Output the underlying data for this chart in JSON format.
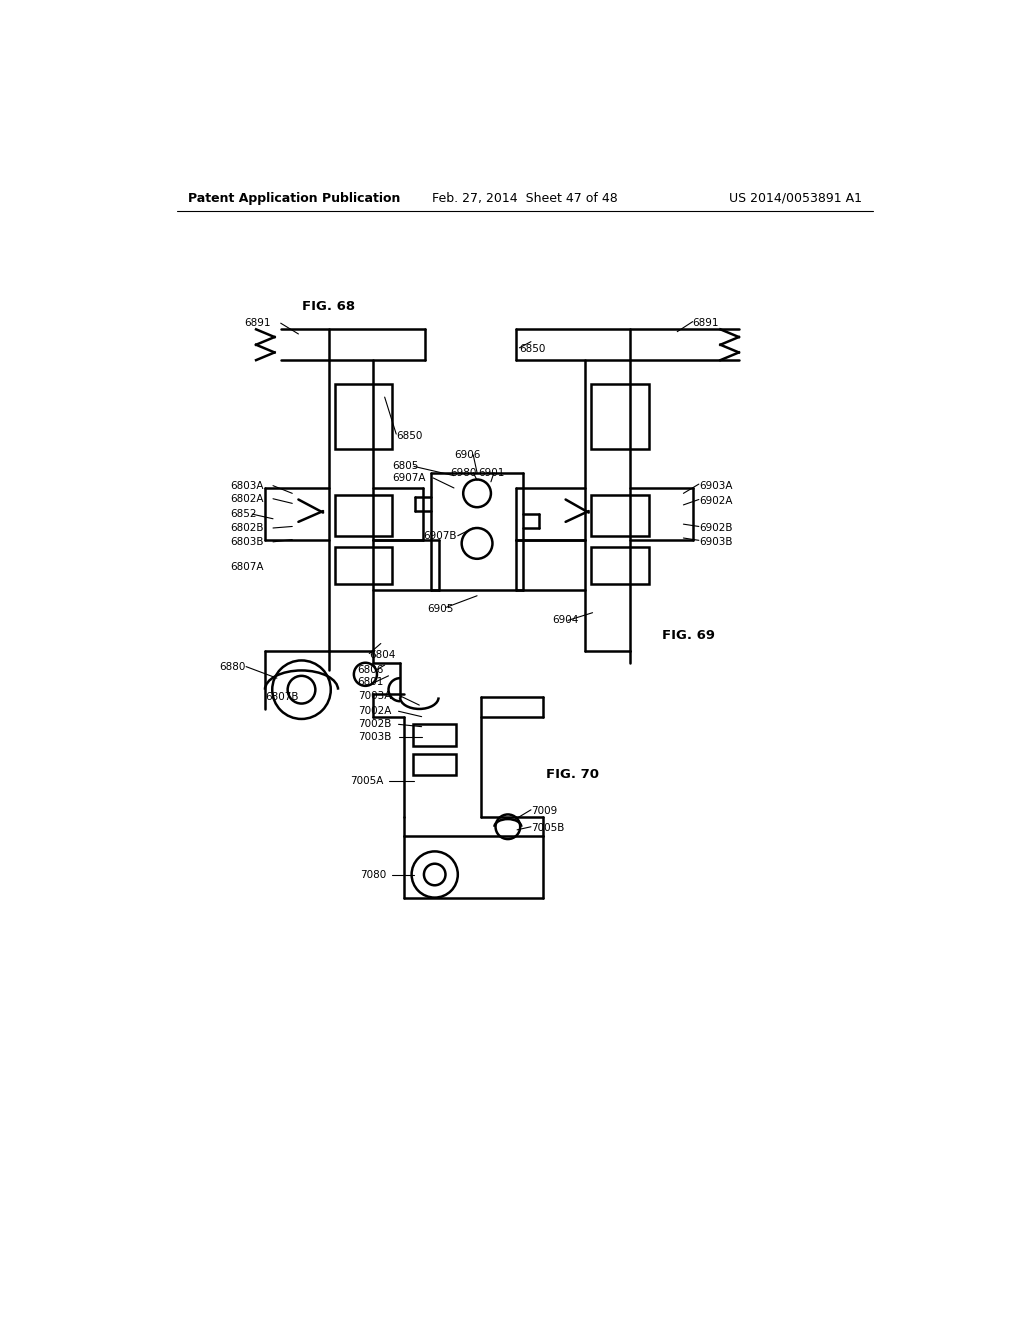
{
  "bg_color": "#ffffff",
  "line_color": "#000000",
  "header_left": "Patent Application Publication",
  "header_mid": "Feb. 27, 2014  Sheet 47 of 48",
  "header_right": "US 2014/0053891 A1",
  "fig68_label": "FIG. 68",
  "fig69_label": "FIG. 69",
  "fig70_label": "FIG. 70",
  "lw": 1.8,
  "tlw": 0.8,
  "fs": 7.5,
  "fs_fig": 9.5
}
